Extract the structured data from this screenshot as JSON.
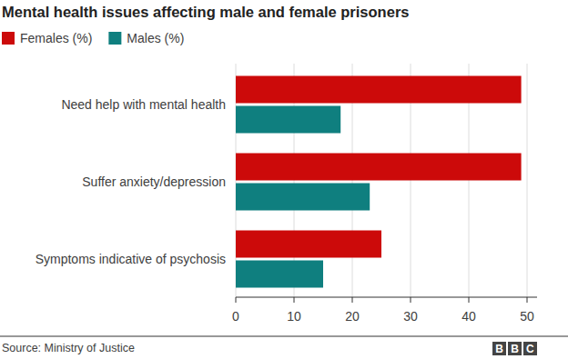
{
  "chart_data": {
    "type": "bar",
    "orientation": "horizontal",
    "title": "Mental health issues affecting male and female prisoners",
    "categories": [
      "Need help with mental health",
      "Suffer anxiety/depression",
      "Symptoms indicative of psychosis"
    ],
    "series": [
      {
        "name": "Females (%)",
        "color": "#cc0a0a",
        "values": [
          49,
          49,
          25
        ]
      },
      {
        "name": "Males (%)",
        "color": "#0f7f7f",
        "values": [
          18,
          23,
          15
        ]
      }
    ],
    "xlim": [
      0,
      50
    ],
    "xticks": [
      0,
      10,
      20,
      30,
      40,
      50
    ],
    "grid": true,
    "legend": "top-left",
    "source": "Source: Ministry of Justice",
    "branding": "BBC"
  }
}
